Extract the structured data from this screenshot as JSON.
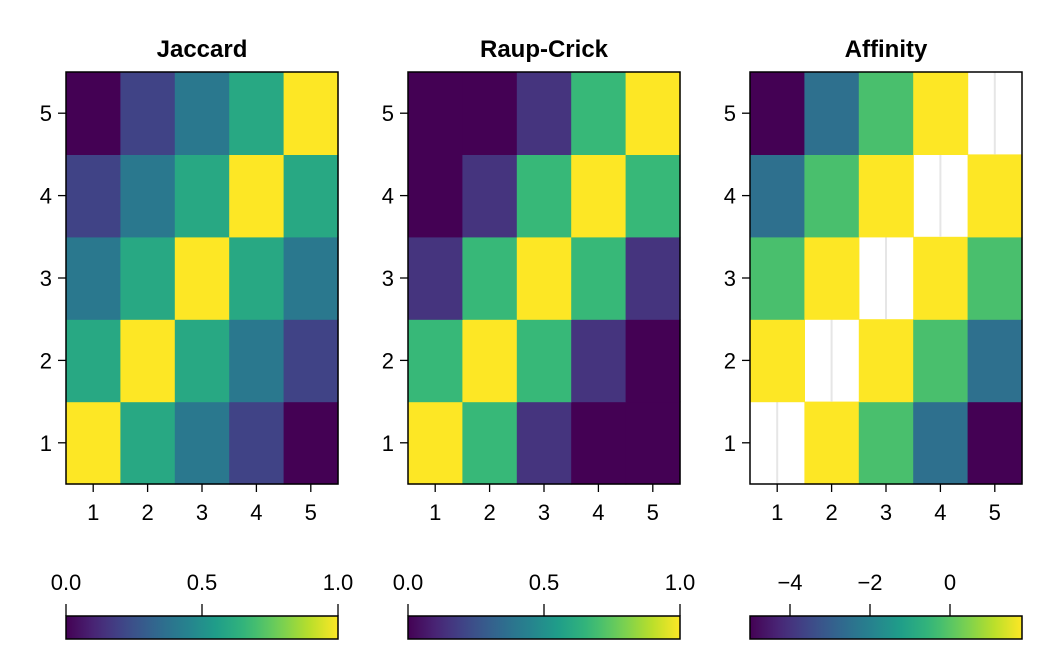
{
  "chart_data": [
    {
      "type": "heatmap",
      "title": "Jaccard",
      "x": [
        1,
        2,
        3,
        4,
        5
      ],
      "y": [
        1,
        2,
        3,
        4,
        5
      ],
      "xticks": [
        "1",
        "2",
        "3",
        "4",
        "5"
      ],
      "yticks": [
        "1",
        "2",
        "3",
        "4",
        "5"
      ],
      "values": [
        [
          1.0,
          0.6,
          0.4,
          0.2,
          0.0
        ],
        [
          0.6,
          1.0,
          0.6,
          0.4,
          0.2
        ],
        [
          0.4,
          0.6,
          1.0,
          0.6,
          0.4
        ],
        [
          0.2,
          0.4,
          0.6,
          1.0,
          0.6
        ],
        [
          0.0,
          0.2,
          0.4,
          0.6,
          1.0
        ]
      ],
      "color_range": [
        0.0,
        1.0
      ],
      "colormap": "viridis",
      "colorbar_ticks": [
        "0.0",
        "0.5",
        "1.0"
      ],
      "colorbar_tick_values": [
        0.0,
        0.5,
        1.0
      ]
    },
    {
      "type": "heatmap",
      "title": "Raup-Crick",
      "x": [
        1,
        2,
        3,
        4,
        5
      ],
      "y": [
        1,
        2,
        3,
        4,
        5
      ],
      "xticks": [
        "1",
        "2",
        "3",
        "4",
        "5"
      ],
      "yticks": [
        "1",
        "2",
        "3",
        "4",
        "5"
      ],
      "values": [
        [
          1.0,
          0.67,
          0.15,
          0.0,
          0.0
        ],
        [
          0.67,
          1.0,
          0.67,
          0.15,
          0.0
        ],
        [
          0.15,
          0.67,
          1.0,
          0.67,
          0.15
        ],
        [
          0.0,
          0.15,
          0.67,
          1.0,
          0.67
        ],
        [
          0.0,
          0.0,
          0.15,
          0.67,
          1.0
        ]
      ],
      "color_range": [
        0.0,
        1.0
      ],
      "colormap": "viridis",
      "colorbar_ticks": [
        "0.0",
        "0.5",
        "1.0"
      ],
      "colorbar_tick_values": [
        0.0,
        0.5,
        1.0
      ]
    },
    {
      "type": "heatmap",
      "title": "Affinity",
      "x": [
        1,
        2,
        3,
        4,
        5
      ],
      "y": [
        1,
        2,
        3,
        4,
        5
      ],
      "xticks": [
        "1",
        "2",
        "3",
        "4",
        "5"
      ],
      "yticks": [
        "1",
        "2",
        "3",
        "4",
        "5"
      ],
      "values": [
        [
          null,
          1.8,
          -0.2,
          -2.5,
          -5.0
        ],
        [
          1.8,
          null,
          1.8,
          -0.2,
          -2.5
        ],
        [
          -0.2,
          1.8,
          null,
          1.8,
          -0.2
        ],
        [
          -2.5,
          -0.2,
          1.8,
          null,
          1.8
        ],
        [
          -5.0,
          -2.5,
          -0.2,
          1.8,
          null
        ]
      ],
      "color_range": [
        -5.0,
        1.8
      ],
      "colormap": "viridis",
      "colorbar_ticks": [
        "−4",
        "−2",
        "0"
      ],
      "colorbar_tick_values": [
        -4,
        -2,
        0
      ]
    }
  ]
}
